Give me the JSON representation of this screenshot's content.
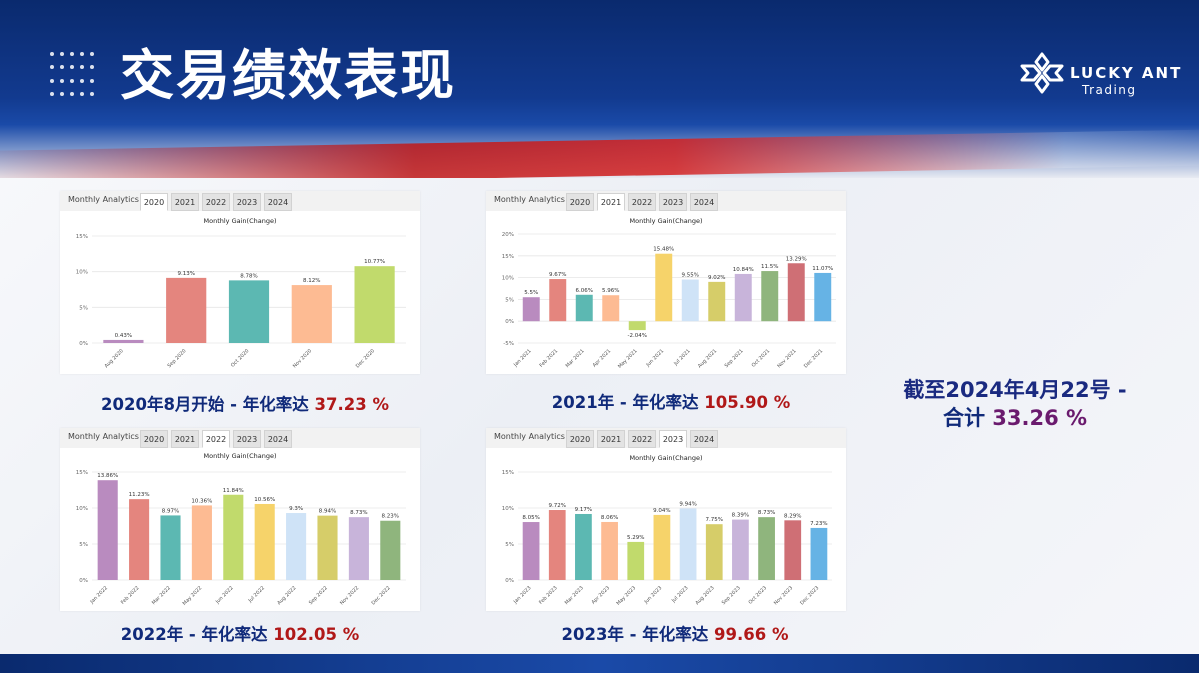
{
  "title": "交易绩效表现",
  "logo": {
    "name": "LUCKY ANT",
    "sub": "Trading"
  },
  "colors": {
    "header": "#123a8f",
    "red": "#b01818",
    "caption_blue": "#102a7a"
  },
  "summary": {
    "line1": "截至2024年4月22号 -",
    "line2_label": "合计",
    "line2_value": "33.26 %"
  },
  "panels": [
    {
      "tab_title": "Monthly Analytics",
      "tabs": [
        "2020",
        "2021",
        "2022",
        "2023",
        "2024"
      ],
      "active_tab": "2020",
      "caption_label": "2020年8月开始 - 年化率达",
      "caption_value": "37.23 %",
      "chart_data": {
        "type": "bar",
        "title": "Monthly Gain(Change)",
        "categories": [
          "Aug 2020",
          "Sep 2020",
          "Oct 2020",
          "Nov 2020",
          "Dec 2020"
        ],
        "values": [
          0.43,
          9.13,
          8.78,
          8.12,
          10.77
        ],
        "labels": [
          "0.43%",
          "9.13%",
          "8.78%",
          "8.12%",
          "10.77%"
        ],
        "colors": [
          "#b98bbf",
          "#e4857e",
          "#5cb8b2",
          "#fdbb93",
          "#c1da6c"
        ],
        "ylim": [
          0,
          15
        ],
        "yticks": [
          "0%",
          "5%",
          "10%",
          "15%"
        ],
        "ytick_values": [
          0,
          5,
          10,
          15
        ]
      }
    },
    {
      "tab_title": "Monthly Analytics",
      "tabs": [
        "2020",
        "2021",
        "2022",
        "2023",
        "2024"
      ],
      "active_tab": "2021",
      "caption_label": "2021年 - 年化率达",
      "caption_value": "105.90 %",
      "chart_data": {
        "type": "bar",
        "title": "Monthly Gain(Change)",
        "categories": [
          "Jan 2021",
          "Feb 2021",
          "Mar 2021",
          "Apr 2021",
          "May 2021",
          "Jun 2021",
          "Jul 2021",
          "Aug 2021",
          "Sep 2021",
          "Oct 2021",
          "Nov 2021",
          "Dec 2021"
        ],
        "values": [
          5.5,
          9.67,
          6.06,
          5.96,
          -2.04,
          15.48,
          9.55,
          9.02,
          10.84,
          11.5,
          13.29,
          11.07
        ],
        "labels": [
          "5.5%",
          "9.67%",
          "6.06%",
          "5.96%",
          "-2.04%",
          "15.48%",
          "9.55%",
          "9.02%",
          "10.84%",
          "11.5%",
          "13.29%",
          "11.07%"
        ],
        "colors": [
          "#b98bbf",
          "#e4857e",
          "#5cb8b2",
          "#fdbb93",
          "#c1da6c",
          "#f6d36a",
          "#cfe3f7",
          "#d6cd69",
          "#c8b4da",
          "#8fb57d",
          "#cf6f75",
          "#66b3e5"
        ],
        "ylim": [
          -5,
          20
        ],
        "yticks": [
          "-5%",
          "0%",
          "5%",
          "10%",
          "15%",
          "20%"
        ],
        "ytick_values": [
          -5,
          0,
          5,
          10,
          15,
          20
        ]
      }
    },
    {
      "tab_title": "Monthly Analytics",
      "tabs": [
        "2020",
        "2021",
        "2022",
        "2023",
        "2024"
      ],
      "active_tab": "2022",
      "caption_label": "2022年 - 年化率达",
      "caption_value": "102.05 %",
      "chart_data": {
        "type": "bar",
        "title": "Monthly Gain(Change)",
        "categories": [
          "Jan 2022",
          "Feb 2022",
          "Mar 2022",
          "May 2022",
          "Jun 2022",
          "Jul 2022",
          "Aug 2022",
          "Sep 2022",
          "Nov 2022",
          "Dec 2022"
        ],
        "values": [
          13.86,
          11.23,
          8.97,
          10.36,
          11.84,
          10.56,
          9.3,
          8.94,
          8.73,
          8.23
        ],
        "labels": [
          "13.86%",
          "11.23%",
          "8.97%",
          "10.36%",
          "11.84%",
          "10.56%",
          "9.3%",
          "8.94%",
          "8.73%",
          "8.23%"
        ],
        "colors": [
          "#b98bbf",
          "#e4857e",
          "#5cb8b2",
          "#fdbb93",
          "#c1da6c",
          "#f6d36a",
          "#cfe3f7",
          "#d6cd69",
          "#c8b4da",
          "#8fb57d"
        ],
        "ylim": [
          0,
          15
        ],
        "yticks": [
          "0%",
          "5%",
          "10%",
          "15%"
        ],
        "ytick_values": [
          0,
          5,
          10,
          15
        ]
      }
    },
    {
      "tab_title": "Monthly Analytics",
      "tabs": [
        "2020",
        "2021",
        "2022",
        "2023",
        "2024"
      ],
      "active_tab": "2023",
      "caption_label": "2023年 - 年化率达",
      "caption_value": "99.66 %",
      "chart_data": {
        "type": "bar",
        "title": "Monthly Gain(Change)",
        "categories": [
          "Jan 2023",
          "Feb 2023",
          "Mar 2023",
          "Apr 2023",
          "May 2023",
          "Jun 2023",
          "Jul 2023",
          "Aug 2023",
          "Sep 2023",
          "Oct 2023",
          "Nov 2023",
          "Dec 2023"
        ],
        "values": [
          8.05,
          9.72,
          9.17,
          8.06,
          5.29,
          9.04,
          9.94,
          7.75,
          8.39,
          8.73,
          8.29,
          7.23
        ],
        "labels": [
          "8.05%",
          "9.72%",
          "9.17%",
          "8.06%",
          "5.29%",
          "9.04%",
          "9.94%",
          "7.75%",
          "8.39%",
          "8.73%",
          "8.29%",
          "7.23%"
        ],
        "colors": [
          "#b98bbf",
          "#e4857e",
          "#5cb8b2",
          "#fdbb93",
          "#c1da6c",
          "#f6d36a",
          "#cfe3f7",
          "#d6cd69",
          "#c8b4da",
          "#8fb57d",
          "#cf6f75",
          "#66b3e5"
        ],
        "ylim": [
          0,
          15
        ],
        "yticks": [
          "0%",
          "5%",
          "10%",
          "15%"
        ],
        "ytick_values": [
          0,
          5,
          10,
          15
        ]
      }
    }
  ]
}
